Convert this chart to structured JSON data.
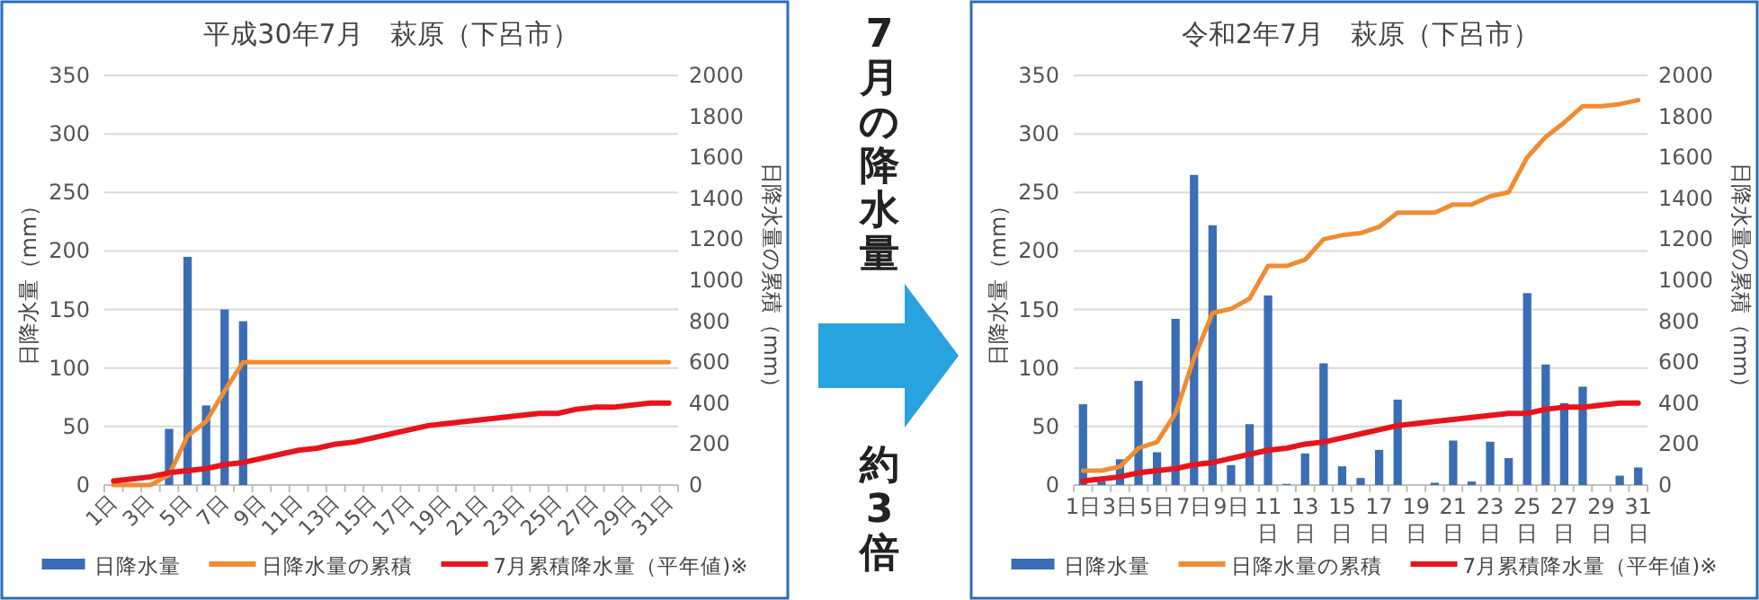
{
  "chart_data": [
    {
      "type": "bar",
      "title": "平成30年7月　萩原（下呂市）",
      "ylabel": "日降水量（mm）",
      "y2label": "日降水量の累積（mm）",
      "categories": [
        "1日",
        null,
        "3日",
        null,
        "5日",
        null,
        "7日",
        null,
        "9日",
        null,
        "11日",
        null,
        "13日",
        null,
        "15日",
        null,
        "17日",
        null,
        "19日",
        null,
        "21日",
        null,
        "23日",
        null,
        "25日",
        null,
        "27日",
        null,
        "29日",
        null,
        "31日"
      ],
      "ylim": [
        0,
        350
      ],
      "yticks": [
        0,
        50,
        100,
        150,
        200,
        250,
        300,
        350
      ],
      "y2lim": [
        0,
        2000
      ],
      "y2ticks": [
        0,
        200,
        400,
        600,
        800,
        1000,
        1200,
        1400,
        1600,
        1800,
        2000
      ],
      "grid": "y",
      "legend": "bottom",
      "series": [
        {
          "name": "日降水量",
          "type": "bar",
          "color": "#3a6db5",
          "values": [
            0,
            0,
            0,
            48,
            195,
            68,
            150,
            140,
            0,
            0,
            0,
            0,
            0,
            0,
            0,
            0,
            0,
            0,
            0,
            0,
            0,
            0,
            0,
            0,
            0,
            0,
            0,
            0,
            0,
            0,
            0
          ]
        },
        {
          "name": "日降水量の累積",
          "type": "line",
          "axis": "y2",
          "color": "#f08c32",
          "values": [
            0,
            0,
            0,
            50,
            240,
            310,
            460,
            600,
            600,
            600,
            600,
            600,
            600,
            600,
            600,
            600,
            600,
            600,
            600,
            600,
            600,
            600,
            600,
            600,
            600,
            600,
            600,
            600,
            600,
            600,
            600
          ]
        },
        {
          "name": "7月累積降水量（平年値)※",
          "type": "line",
          "axis": "y2",
          "color": "#e8141c",
          "values": [
            20,
            30,
            40,
            60,
            70,
            80,
            100,
            110,
            130,
            150,
            170,
            180,
            200,
            210,
            230,
            250,
            270,
            290,
            300,
            310,
            320,
            330,
            340,
            350,
            350,
            370,
            380,
            380,
            390,
            400,
            400
          ]
        }
      ]
    },
    {
      "type": "other",
      "annotations": [
        "7月の降水量",
        "約3倍"
      ]
    },
    {
      "type": "bar",
      "title": "令和2年7月　萩原（下呂市）",
      "ylabel": "日降水量（mm）",
      "y2label": "日降水量の累積（mm）",
      "categories": [
        "1日",
        null,
        "3日",
        null,
        "5日",
        null,
        "7日",
        null,
        "9日",
        null,
        "11日",
        null,
        "13日",
        null,
        "15日",
        null,
        "17日",
        null,
        "19日",
        null,
        "21日",
        null,
        "23日",
        null,
        "25日",
        null,
        "27日",
        null,
        "29日",
        null,
        "31日"
      ],
      "ylim": [
        0,
        350
      ],
      "yticks": [
        0,
        50,
        100,
        150,
        200,
        250,
        300,
        350
      ],
      "y2lim": [
        0,
        2000
      ],
      "y2ticks": [
        0,
        200,
        400,
        600,
        800,
        1000,
        1200,
        1400,
        1600,
        1800,
        2000
      ],
      "grid": "y",
      "legend": "bottom",
      "series": [
        {
          "name": "日降水量",
          "type": "bar",
          "color": "#3a6db5",
          "values": [
            69,
            3,
            22,
            89,
            28,
            142,
            265,
            222,
            17,
            52,
            162,
            1,
            27,
            104,
            16,
            6,
            30,
            73,
            0,
            2,
            38,
            3,
            37,
            23,
            164,
            103,
            70,
            84,
            0,
            8,
            15
          ]
        },
        {
          "name": "日降水量の累積",
          "type": "line",
          "axis": "y2",
          "color": "#f08c32",
          "values": [
            70,
            70,
            90,
            180,
            210,
            350,
            620,
            840,
            860,
            910,
            1070,
            1070,
            1100,
            1200,
            1220,
            1230,
            1260,
            1330,
            1330,
            1330,
            1370,
            1370,
            1410,
            1430,
            1600,
            1700,
            1770,
            1850,
            1850,
            1860,
            1880
          ]
        },
        {
          "name": "7月累積降水量（平年値)※",
          "type": "line",
          "axis": "y2",
          "color": "#e8141c",
          "values": [
            20,
            30,
            40,
            60,
            70,
            80,
            100,
            110,
            130,
            150,
            170,
            180,
            200,
            210,
            230,
            250,
            270,
            290,
            300,
            310,
            320,
            330,
            340,
            350,
            350,
            370,
            380,
            380,
            390,
            400,
            400
          ]
        }
      ]
    }
  ]
}
